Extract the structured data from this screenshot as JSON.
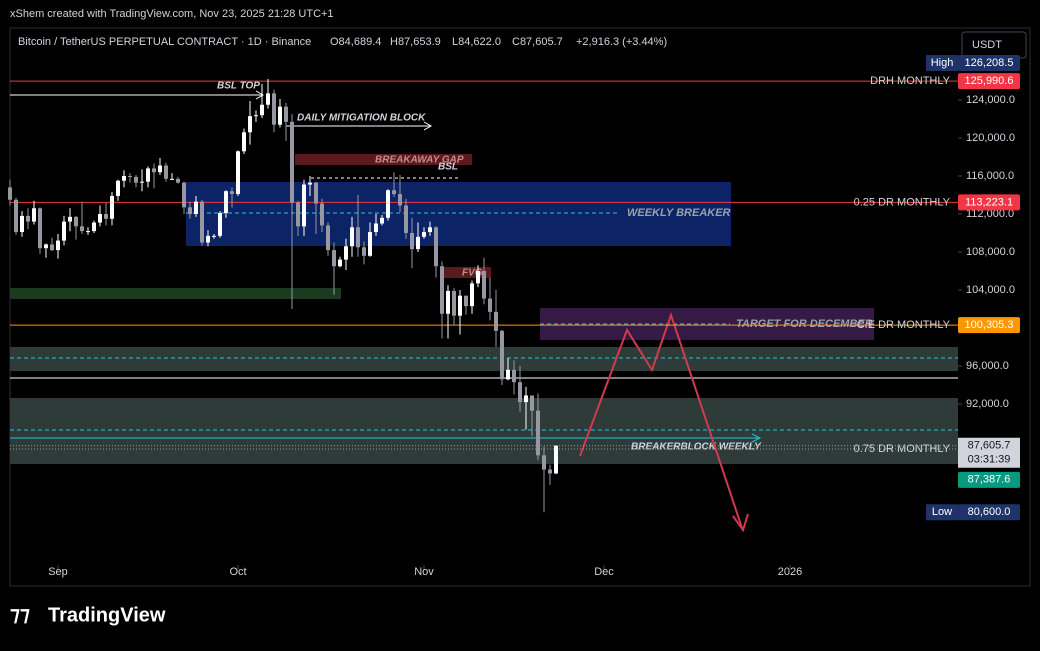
{
  "header": {
    "credit": "xShem created with TradingView.com, Nov 23, 2025 21:28 UTC+1",
    "symbol": "Bitcoin / TetherUS PERPETUAL CONTRACT · 1D · Binance",
    "open": "O84,689.4",
    "high": "H87,653.9",
    "low": "L84,622.0",
    "close": "C87,605.7",
    "change": "+2,916.3 (+3.44%)",
    "currency": "USDT",
    "brand": "TradingView"
  },
  "chart_data": {
    "type": "candlestick",
    "x": [
      "2025-08-24",
      "2025-08-25",
      "2025-08-26",
      "2025-08-27",
      "2025-08-28",
      "2025-08-29",
      "2025-08-30",
      "2025-08-31",
      "2025-09-01",
      "2025-09-02",
      "2025-09-03",
      "2025-09-04",
      "2025-09-05",
      "2025-09-06",
      "2025-09-07",
      "2025-09-08",
      "2025-09-09",
      "2025-09-10",
      "2025-09-11",
      "2025-09-12",
      "2025-09-13",
      "2025-09-14",
      "2025-09-15",
      "2025-09-16",
      "2025-09-17",
      "2025-09-18",
      "2025-09-19",
      "2025-09-20",
      "2025-09-21",
      "2025-09-22",
      "2025-09-23",
      "2025-09-24",
      "2025-09-25",
      "2025-09-26",
      "2025-09-27",
      "2025-09-28",
      "2025-09-29",
      "2025-09-30",
      "2025-10-01",
      "2025-10-02",
      "2025-10-03",
      "2025-10-04",
      "2025-10-05",
      "2025-10-06",
      "2025-10-07",
      "2025-10-08",
      "2025-10-09",
      "2025-10-10",
      "2025-10-11",
      "2025-10-12",
      "2025-10-13",
      "2025-10-14",
      "2025-10-15",
      "2025-10-16",
      "2025-10-17",
      "2025-10-18",
      "2025-10-19",
      "2025-10-20",
      "2025-10-21",
      "2025-10-22",
      "2025-10-23",
      "2025-10-24",
      "2025-10-25",
      "2025-10-26",
      "2025-10-27",
      "2025-10-28",
      "2025-10-29",
      "2025-10-30",
      "2025-10-31",
      "2025-11-01",
      "2025-11-02",
      "2025-11-03",
      "2025-11-04",
      "2025-11-05",
      "2025-11-06",
      "2025-11-07",
      "2025-11-08",
      "2025-11-09",
      "2025-11-10",
      "2025-11-11",
      "2025-11-12",
      "2025-11-13",
      "2025-11-14",
      "2025-11-15",
      "2025-11-16",
      "2025-11-17",
      "2025-11-18",
      "2025-11-19",
      "2025-11-20",
      "2025-11-21",
      "2025-11-22",
      "2025-11-23"
    ],
    "open": [
      114800,
      113500,
      110100,
      111800,
      111200,
      112600,
      108400,
      108800,
      108200,
      109200,
      111200,
      111700,
      110700,
      110200,
      110200,
      111100,
      112000,
      111500,
      113900,
      115500,
      116000,
      115900,
      115300,
      115400,
      116800,
      116400,
      117100,
      115700,
      115700,
      115300,
      112700,
      112000,
      113300,
      109000,
      109700,
      109700,
      112100,
      114400,
      114100,
      118600,
      120600,
      122300,
      122400,
      123500,
      124700,
      121400,
      123300,
      121700,
      113200,
      110700,
      115100,
      115300,
      113100,
      110800,
      108200,
      106500,
      107200,
      108600,
      110600,
      108500,
      107600,
      110100,
      111000,
      111600,
      114500,
      114100,
      112900,
      110000,
      108300,
      109600,
      110100,
      110600,
      106500,
      101500,
      103900,
      101300,
      103400,
      102300,
      104700,
      106000,
      103100,
      101700,
      99700,
      94600,
      95600,
      94300,
      92200,
      92900,
      91300,
      86600,
      85100,
      84689.4
    ],
    "high": [
      115600,
      113700,
      112300,
      112600,
      113400,
      112700,
      108900,
      109500,
      109900,
      111800,
      112600,
      111800,
      113300,
      110600,
      111300,
      112900,
      113200,
      114300,
      115600,
      116600,
      116300,
      116100,
      116700,
      117000,
      117300,
      117900,
      117400,
      116300,
      115900,
      115400,
      113300,
      113900,
      113500,
      110300,
      109900,
      112300,
      114500,
      114800,
      118700,
      121000,
      123900,
      122900,
      125700,
      126208.5,
      125100,
      124100,
      123700,
      122500,
      113400,
      115600,
      116000,
      115400,
      113600,
      111100,
      109000,
      107500,
      109400,
      111700,
      114000,
      109100,
      111100,
      112000,
      111900,
      114600,
      116400,
      116100,
      113600,
      111600,
      111100,
      110600,
      111200,
      110700,
      107000,
      104500,
      104200,
      104000,
      103400,
      105000,
      106600,
      107400,
      105300,
      104000,
      99800,
      96800,
      96600,
      96000,
      93800,
      92900,
      93100,
      87500,
      85600,
      87653.9
    ],
    "low": [
      112900,
      109800,
      109600,
      110400,
      110900,
      107800,
      107400,
      108100,
      107300,
      108700,
      110200,
      109300,
      109900,
      109800,
      110000,
      110700,
      110800,
      110800,
      113400,
      114800,
      115300,
      114800,
      114400,
      114800,
      114700,
      116100,
      115400,
      115600,
      115200,
      112000,
      111500,
      111700,
      108700,
      108600,
      109400,
      109500,
      111600,
      112700,
      113900,
      118300,
      119300,
      121700,
      122100,
      123100,
      120600,
      121100,
      119700,
      102000,
      109700,
      109700,
      113900,
      109900,
      110100,
      107600,
      103500,
      106400,
      106100,
      107500,
      107500,
      106700,
      107500,
      109700,
      110800,
      111300,
      113800,
      112200,
      109400,
      106300,
      108000,
      109400,
      109700,
      105300,
      98900,
      98900,
      100300,
      99300,
      101400,
      101500,
      104300,
      102500,
      100800,
      98000,
      94000,
      94500,
      93000,
      91200,
      89300,
      88600,
      86100,
      80600,
      83500,
      84622
    ],
    "close": [
      113500,
      110100,
      111800,
      111200,
      112600,
      108400,
      108800,
      108200,
      109200,
      111200,
      111700,
      110700,
      110200,
      110200,
      111100,
      112000,
      111500,
      113900,
      115500,
      116000,
      115900,
      115300,
      115400,
      116800,
      116400,
      117100,
      115700,
      115700,
      115300,
      112700,
      112000,
      113300,
      109000,
      109700,
      109700,
      112100,
      114400,
      114100,
      118600,
      120600,
      122300,
      122400,
      123500,
      124700,
      121400,
      123300,
      121700,
      113200,
      110700,
      115100,
      115300,
      113100,
      110800,
      108200,
      106500,
      107200,
      108600,
      110600,
      108500,
      107600,
      110100,
      111000,
      111600,
      114500,
      114100,
      112900,
      110000,
      108300,
      109600,
      110100,
      110600,
      106500,
      101500,
      103900,
      101300,
      103400,
      102300,
      104700,
      106000,
      103100,
      101700,
      99700,
      94600,
      95600,
      94300,
      92200,
      92900,
      91300,
      86600,
      85100,
      84689.4,
      87605.7
    ],
    "up_color": "#ffffff",
    "down_color": "#9598a1",
    "xlim": [
      "2025-08-23",
      "2026-01-29"
    ],
    "xticks": [
      {
        "value": "2025-09-01",
        "label": "Sep"
      },
      {
        "value": "2025-10-01",
        "label": "Oct"
      },
      {
        "value": "2025-11-01",
        "label": "Nov"
      },
      {
        "value": "2025-12-01",
        "label": "Dec"
      },
      {
        "value": "2026-01-01",
        "label": "2026"
      }
    ],
    "ylim": [
      72947,
      131579
    ],
    "yticks": [
      {
        "value": 124000,
        "label": "124,000.0"
      },
      {
        "value": 120000,
        "label": "120,000.0"
      },
      {
        "value": 116000,
        "label": "116,000.0"
      },
      {
        "value": 112000,
        "label": "112,000.0"
      },
      {
        "value": 108000,
        "label": "108,000.0"
      },
      {
        "value": 104000,
        "label": "104,000.0"
      },
      {
        "value": 96000,
        "label": "96,000.0"
      },
      {
        "value": 92000,
        "label": "92,000.0"
      }
    ],
    "levels": [
      {
        "name": "DRH MONTHLY",
        "value": 125990.6,
        "label": "125,990.6",
        "color": "#f23645"
      },
      {
        "name": "0.25 DR MONTHLY",
        "value": 113223.1,
        "label": "113,223.1",
        "color": "#f23645"
      },
      {
        "name": "C.E DR MONTHLY",
        "value": 100305.3,
        "label": "100,305.3",
        "color": "#ff9800"
      },
      {
        "name": "0.75 DR MONTHLY",
        "value": 87263,
        "color": "#9598a1"
      }
    ],
    "high_label": {
      "text": "High",
      "value": 126208.5,
      "label": "126,208.5"
    },
    "low_label": {
      "text": "Low",
      "value": 80600,
      "label": "80,600.0"
    },
    "last_price": {
      "value": 87605.7,
      "label": "87,605.7",
      "countdown": "03:31:39"
    },
    "second_price": {
      "value": 87387.6,
      "label": "87,387.6"
    },
    "annotations": [
      "BSL TOP",
      "DAILY MITIGATION BLOCK",
      "BREAKAWAY GAP",
      "BSL",
      "WEEKLY BREAKER",
      "FVG",
      "TARGET FOR DECEMBER",
      "BREAKERBLOCK WEEKLY"
    ]
  }
}
